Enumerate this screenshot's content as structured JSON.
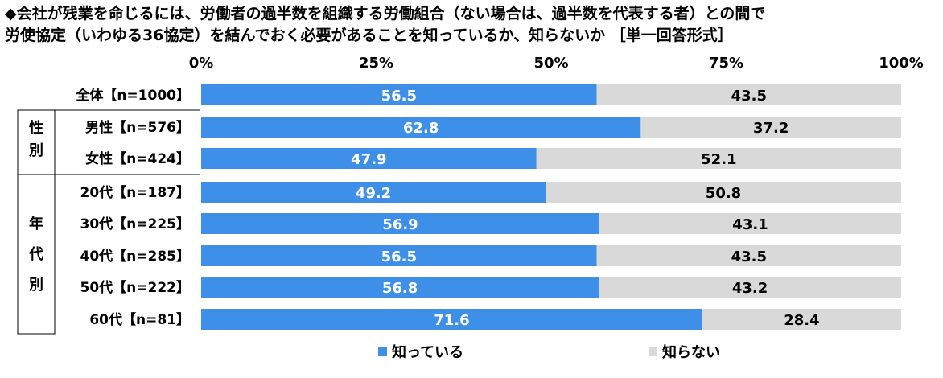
{
  "title_line1": "◆会社が残業を命じるには、労働者の過半数を組織する労働組合（ない場合は、過半数を代表する者）との間で",
  "title_line2": "労使協定（いわゆる36協定）を結んでおく必要があることを知っているか、知らないか ［単一回答形式］",
  "legend": [
    {
      "label": "知っている",
      "color": "#3d8fe8"
    },
    {
      "label": "知らない",
      "color": "#d9d9d9"
    }
  ],
  "groups": [
    {
      "label": "性別"
    },
    {
      "label": "年代別"
    }
  ],
  "chart_data": {
    "type": "bar",
    "orientation": "horizontal",
    "stacked": true,
    "xlim": [
      0,
      100
    ],
    "ticks": [
      "0%",
      "25%",
      "50%",
      "75%",
      "100%"
    ],
    "tick_values": [
      0,
      25,
      50,
      75,
      100
    ],
    "categories": [
      "全体【n=1000】",
      "男性【n=576】",
      "女性【n=424】",
      "20代【n=187】",
      "30代【n=225】",
      "40代【n=285】",
      "50代【n=222】",
      "60代【n=81】"
    ],
    "series": [
      {
        "name": "知っている",
        "color": "#3d8fe8",
        "values": [
          56.5,
          62.8,
          47.9,
          49.2,
          56.9,
          56.5,
          56.8,
          71.6
        ]
      },
      {
        "name": "知らない",
        "color": "#d9d9d9",
        "values": [
          43.5,
          37.2,
          52.1,
          50.8,
          43.1,
          43.5,
          43.2,
          28.4
        ]
      }
    ]
  }
}
